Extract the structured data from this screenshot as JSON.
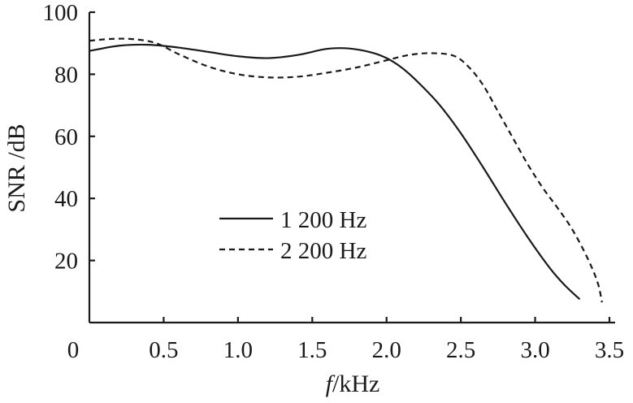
{
  "chart_data": {
    "type": "line",
    "xlabel_italic": "f",
    "xlabel_rest": "/kHz",
    "ylabel": "SNR /dB",
    "xlim": [
      0,
      3.5
    ],
    "ylim": [
      0,
      100
    ],
    "x_ticks": [
      "0",
      "0.5",
      "1.0",
      "1.5",
      "2.0",
      "2.5",
      "3.0",
      "3.5"
    ],
    "y_ticks": [
      "20",
      "40",
      "60",
      "80",
      "100"
    ],
    "x_tick_values": [
      0,
      0.5,
      1.0,
      1.5,
      2.0,
      2.5,
      3.0,
      3.5
    ],
    "y_tick_values": [
      20,
      40,
      60,
      80,
      100
    ],
    "grid": false,
    "legend_position": "center-left",
    "series": [
      {
        "name": "1 200 Hz",
        "style": "solid",
        "x": [
          0,
          0.2,
          0.4,
          0.6,
          0.8,
          1.0,
          1.2,
          1.4,
          1.6,
          1.75,
          1.9,
          2.0,
          2.1,
          2.2,
          2.35,
          2.5,
          2.65,
          2.8,
          2.95,
          3.1,
          3.2,
          3.3
        ],
        "y": [
          87.5,
          89.2,
          89.5,
          88.6,
          87.2,
          85.8,
          85.2,
          86.2,
          88.2,
          88.3,
          87.0,
          85.2,
          82.2,
          78.0,
          70.5,
          61.0,
          50.0,
          38.5,
          27.5,
          17.5,
          12.0,
          7.5
        ]
      },
      {
        "name": "2 200 Hz",
        "style": "dashed",
        "x": [
          0,
          0.15,
          0.3,
          0.45,
          0.6,
          0.8,
          1.0,
          1.2,
          1.4,
          1.6,
          1.8,
          2.0,
          2.15,
          2.3,
          2.45,
          2.55,
          2.65,
          2.75,
          2.85,
          2.95,
          3.05,
          3.15,
          3.25,
          3.35,
          3.42,
          3.45
        ],
        "y": [
          90.8,
          91.4,
          91.3,
          90.0,
          86.5,
          82.5,
          80.0,
          79.0,
          79.2,
          80.5,
          82.2,
          84.5,
          86.2,
          86.8,
          86.0,
          82.5,
          76.5,
          68.0,
          59.5,
          51.0,
          43.5,
          37.0,
          30.0,
          21.0,
          13.0,
          6.5
        ]
      }
    ]
  }
}
